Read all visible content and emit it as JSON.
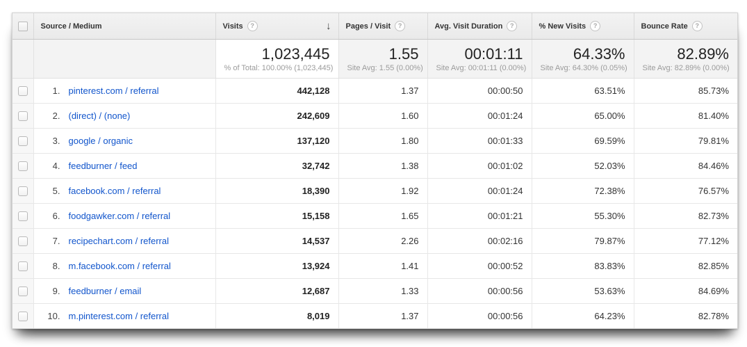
{
  "icons": {
    "help": "?",
    "sort_desc": "↓"
  },
  "colors": {
    "link_blue": "#1155cc",
    "header_bg": "#eeeeee",
    "summary_bg": "#f3f3f3",
    "row_border": "#e7e7e7"
  },
  "table": {
    "columns": [
      {
        "label": "Source / Medium"
      },
      {
        "label": "Visits",
        "help": true,
        "sorted": "desc"
      },
      {
        "label": "Pages / Visit",
        "help": true
      },
      {
        "label": "Avg. Visit Duration",
        "help": true
      },
      {
        "label": "% New Visits",
        "help": true
      },
      {
        "label": "Bounce Rate",
        "help": true
      }
    ],
    "summary": {
      "visits": {
        "value": "1,023,445",
        "sub": "% of Total: 100.00% (1,023,445)"
      },
      "pages": {
        "value": "1.55",
        "sub": "Site Avg: 1.55 (0.00%)"
      },
      "duration": {
        "value": "00:01:11",
        "sub": "Site Avg: 00:01:11 (0.00%)"
      },
      "new_visits": {
        "value": "64.33%",
        "sub": "Site Avg: 64.30% (0.05%)"
      },
      "bounce": {
        "value": "82.89%",
        "sub": "Site Avg: 82.89% (0.00%)"
      }
    },
    "rows": [
      {
        "rank": "1.",
        "source": "pinterest.com / referral",
        "visits": "442,128",
        "pages": "1.37",
        "duration": "00:00:50",
        "new_visits": "63.51%",
        "bounce": "85.73%"
      },
      {
        "rank": "2.",
        "source": "(direct) / (none)",
        "visits": "242,609",
        "pages": "1.60",
        "duration": "00:01:24",
        "new_visits": "65.00%",
        "bounce": "81.40%"
      },
      {
        "rank": "3.",
        "source": "google / organic",
        "visits": "137,120",
        "pages": "1.80",
        "duration": "00:01:33",
        "new_visits": "69.59%",
        "bounce": "79.81%"
      },
      {
        "rank": "4.",
        "source": "feedburner / feed",
        "visits": "32,742",
        "pages": "1.38",
        "duration": "00:01:02",
        "new_visits": "52.03%",
        "bounce": "84.46%"
      },
      {
        "rank": "5.",
        "source": "facebook.com / referral",
        "visits": "18,390",
        "pages": "1.92",
        "duration": "00:01:24",
        "new_visits": "72.38%",
        "bounce": "76.57%"
      },
      {
        "rank": "6.",
        "source": "foodgawker.com / referral",
        "visits": "15,158",
        "pages": "1.65",
        "duration": "00:01:21",
        "new_visits": "55.30%",
        "bounce": "82.73%"
      },
      {
        "rank": "7.",
        "source": "recipechart.com / referral",
        "visits": "14,537",
        "pages": "2.26",
        "duration": "00:02:16",
        "new_visits": "79.87%",
        "bounce": "77.12%"
      },
      {
        "rank": "8.",
        "source": "m.facebook.com / referral",
        "visits": "13,924",
        "pages": "1.41",
        "duration": "00:00:52",
        "new_visits": "83.83%",
        "bounce": "82.85%"
      },
      {
        "rank": "9.",
        "source": "feedburner / email",
        "visits": "12,687",
        "pages": "1.33",
        "duration": "00:00:56",
        "new_visits": "53.63%",
        "bounce": "84.69%"
      },
      {
        "rank": "10.",
        "source": "m.pinterest.com / referral",
        "visits": "8,019",
        "pages": "1.37",
        "duration": "00:00:56",
        "new_visits": "64.23%",
        "bounce": "82.78%"
      }
    ]
  }
}
